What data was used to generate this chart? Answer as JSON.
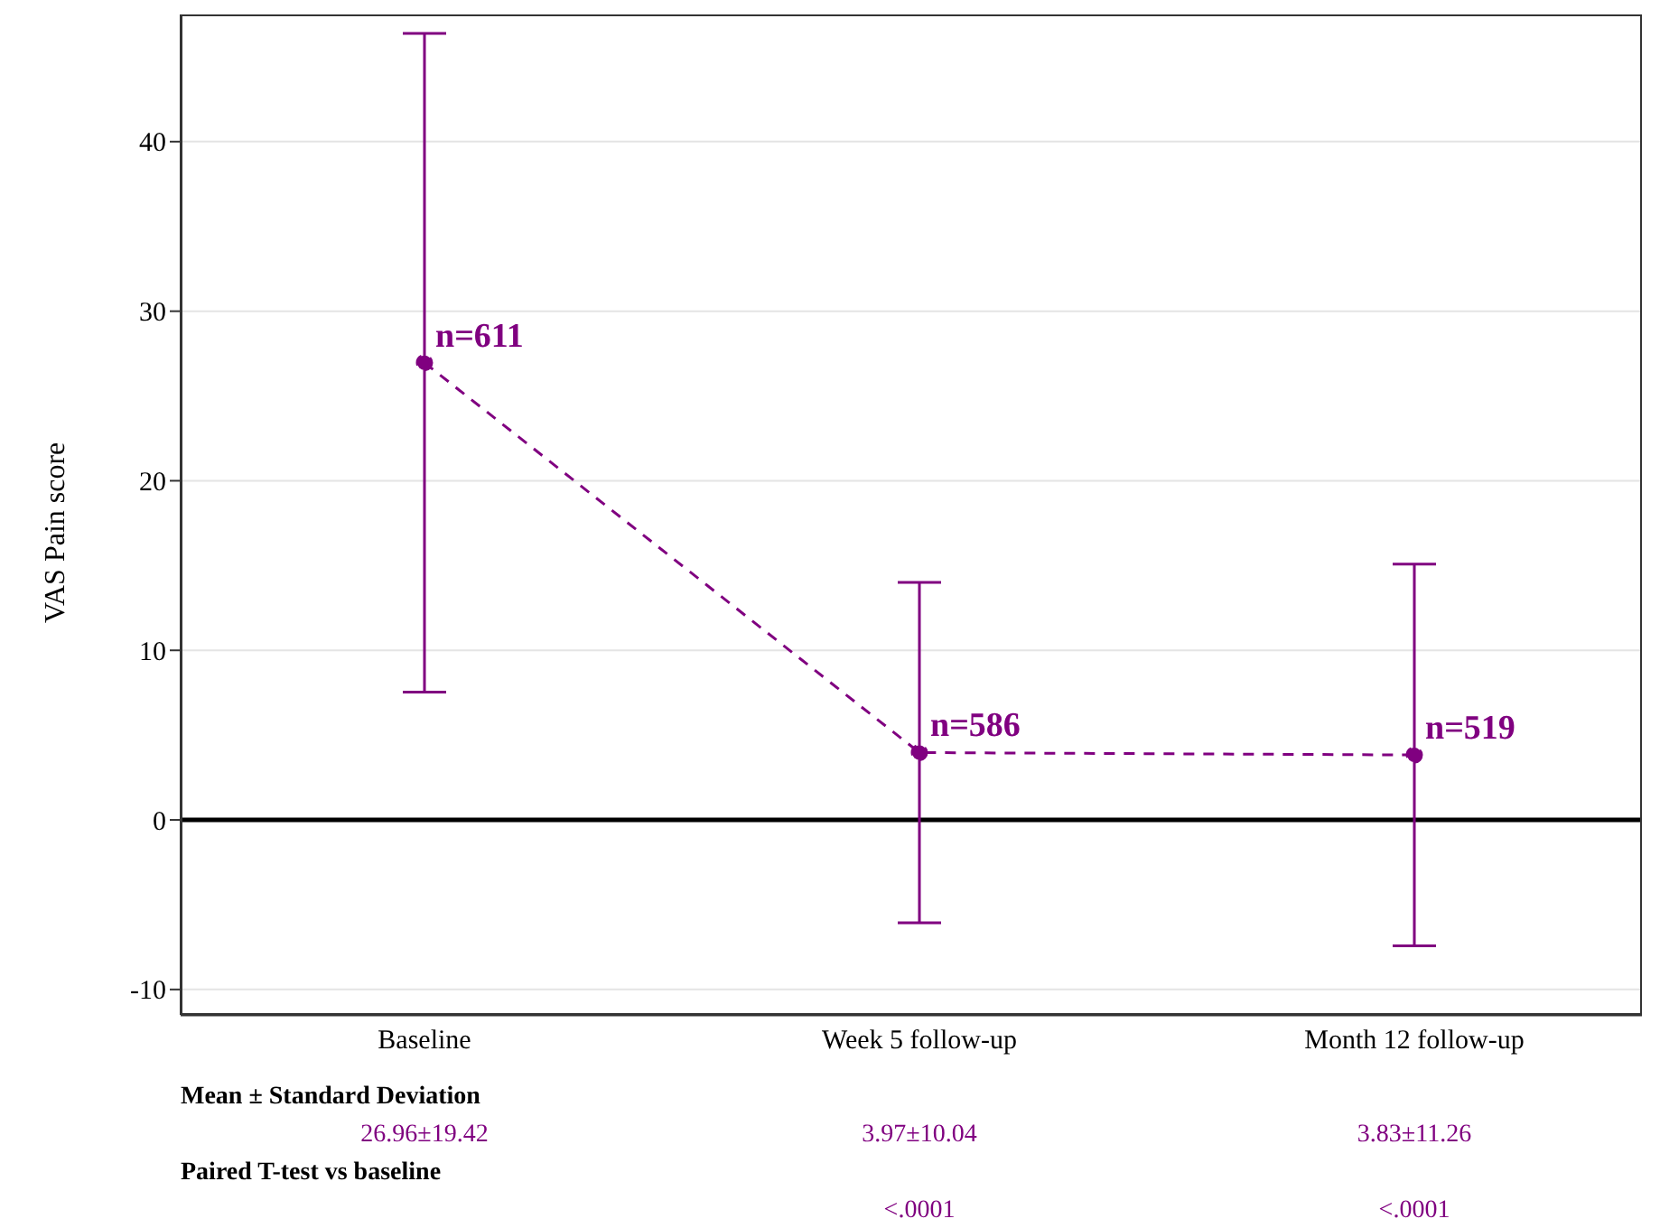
{
  "chart_data": {
    "type": "line",
    "ylabel": "VAS Pain score",
    "categories": [
      "Baseline",
      "Week 5 follow-up",
      "Month 12 follow-up"
    ],
    "series": [
      {
        "color": "#800080",
        "values": [
          26.96,
          3.97,
          3.83
        ],
        "errors": [
          19.42,
          10.04,
          11.26
        ],
        "value_labels": [
          "26.96±19.42",
          "3.97±10.04",
          "3.83±11.26"
        ]
      }
    ],
    "ylim": [
      -11.5,
      47.5
    ],
    "yticks": [
      -10,
      0,
      10,
      20,
      30,
      40
    ],
    "grid": "y",
    "legend": false,
    "marker": "circle",
    "line_style": "dashed",
    "ref_lines": [
      {
        "axis": "y",
        "value": 0,
        "color": "#000000"
      }
    ],
    "annotations": [
      {
        "text": "n=611",
        "x": "Baseline",
        "y": 26.96
      },
      {
        "text": "n=586",
        "x": "Week 5 follow-up",
        "y": 3.97
      },
      {
        "text": "n=519",
        "x": "Month 12 follow-up",
        "y": 3.83
      },
      "Mean ± Standard Deviation",
      "Paired T-test vs baseline",
      "<.0001",
      "<.0001"
    ]
  }
}
